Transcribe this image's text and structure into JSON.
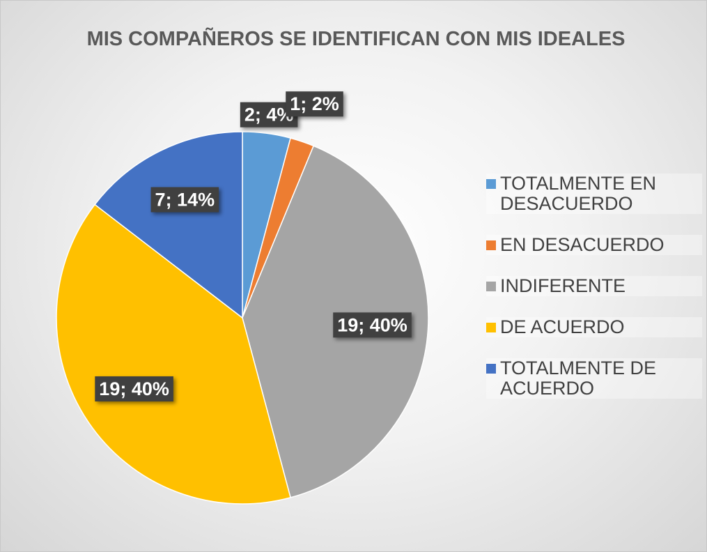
{
  "chart_data": {
    "type": "pie",
    "title": "MIS COMPAÑEROS SE IDENTIFICAN CON MIS IDEALES",
    "categories": [
      "TOTALMENTE EN DESACUERDO",
      "EN DESACUERDO",
      "INDIFERENTE",
      "DE ACUERDO",
      "TOTALMENTE DE ACUERDO"
    ],
    "values": [
      2,
      1,
      19,
      19,
      7
    ],
    "value_labels": [
      "2; 4%",
      "1; 2%",
      "19; 40%",
      "19; 40%",
      "7; 14%"
    ],
    "colors": [
      "#5b9bd5",
      "#ed7d31",
      "#a5a5a5",
      "#ffc000",
      "#4472c4"
    ],
    "legend": "right"
  }
}
